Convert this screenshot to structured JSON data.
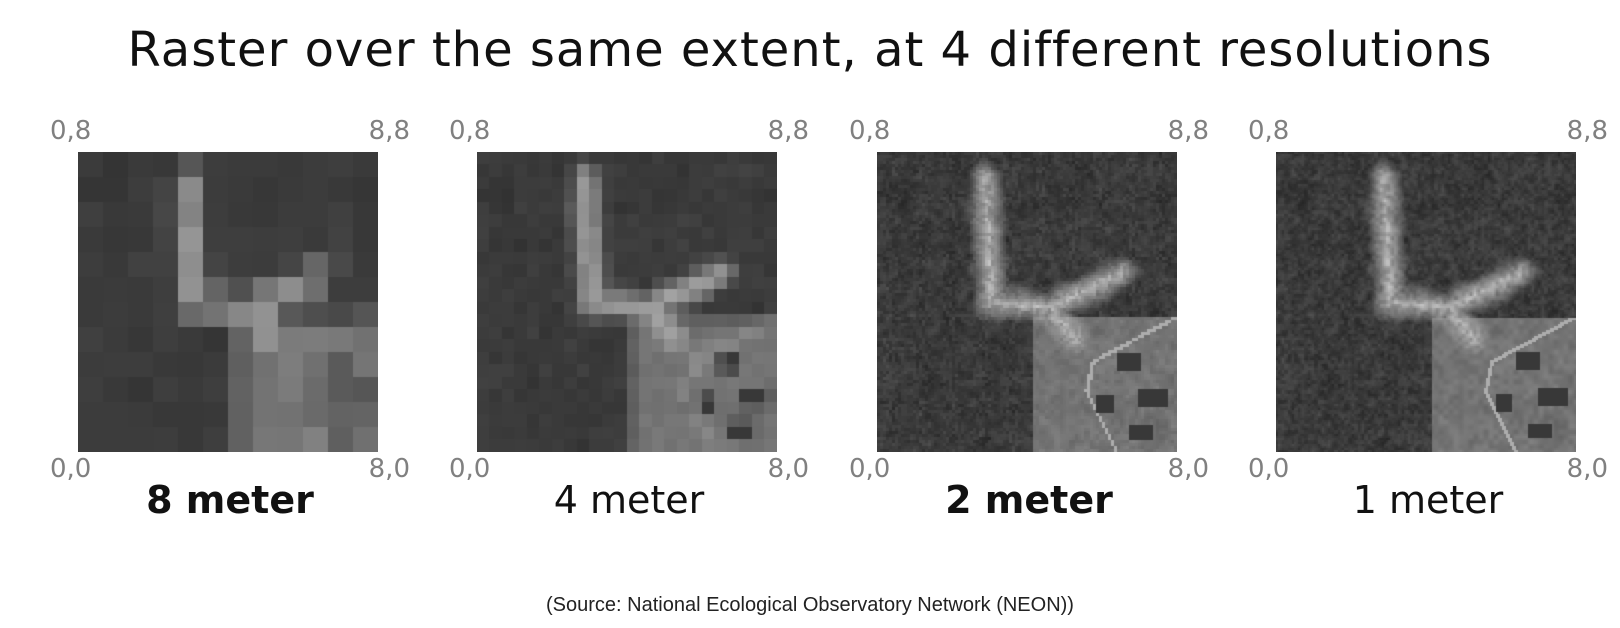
{
  "title": "Raster over the same extent, at 4 different resolutions",
  "panels": [
    {
      "corners": {
        "top_left": "0,8",
        "top_right": "8,8",
        "bottom_left": "0,0",
        "bottom_right": "8,0"
      },
      "label": "8 meter",
      "grid_cells": 12
    },
    {
      "corners": {
        "top_left": "0,8",
        "top_right": "8,8",
        "bottom_left": "0,0",
        "bottom_right": "8,0"
      },
      "label": "4 meter",
      "grid_cells": 24
    },
    {
      "corners": {
        "top_left": "0,8",
        "top_right": "8,8",
        "bottom_left": "0,0",
        "bottom_right": "8,0"
      },
      "label": "2 meter",
      "grid_cells": 100
    },
    {
      "corners": {
        "top_left": "0,8",
        "top_right": "8,8",
        "bottom_left": "0,0",
        "bottom_right": "8,0"
      },
      "label": "1 meter",
      "grid_cells": 150
    }
  ],
  "source": "(Source: National Ecological Observatory Network (NEON))",
  "colors": {
    "corner_text": "#808080",
    "label_text": "#111111",
    "forest": "#2e2e2e",
    "clearing": "#9a9a9a"
  }
}
